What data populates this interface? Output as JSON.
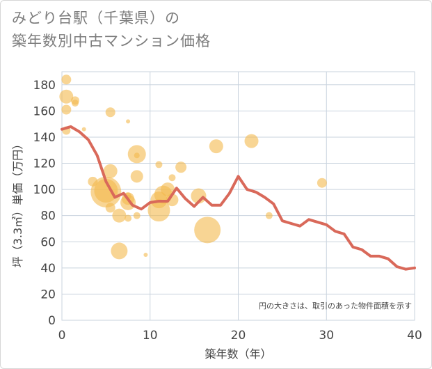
{
  "title_line1": "みどり台駅（千葉県）の",
  "title_line2": "築年数別中古マンション価格",
  "chart_data": {
    "type": "scatter",
    "xlabel": "築年数（年）",
    "ylabel": "坪（3.3㎡）単価（万円）",
    "xlim": [
      0,
      40
    ],
    "ylim": [
      0,
      190
    ],
    "xticks": [
      "0",
      "10",
      "20",
      "30",
      "40"
    ],
    "yticks": [
      "0",
      "20",
      "40",
      "60",
      "80",
      "100",
      "120",
      "140",
      "160",
      "180"
    ],
    "grid": true,
    "note": "円の大きさは、取引のあった物件面積を示す",
    "colors": {
      "bubble": "#f3b94d",
      "line": "#d9695a",
      "grid": "#c9d3de"
    },
    "bubbles": [
      {
        "x": 0.5,
        "y": 184,
        "s": 7
      },
      {
        "x": 0.5,
        "y": 171,
        "s": 10
      },
      {
        "x": 1.5,
        "y": 168,
        "s": 6
      },
      {
        "x": 1.5,
        "y": 166,
        "s": 5
      },
      {
        "x": 0.5,
        "y": 161,
        "s": 7
      },
      {
        "x": 0.5,
        "y": 145,
        "s": 6
      },
      {
        "x": 2.5,
        "y": 146,
        "s": 3
      },
      {
        "x": 5.5,
        "y": 159,
        "s": 7
      },
      {
        "x": 7.5,
        "y": 152,
        "s": 3
      },
      {
        "x": 8.5,
        "y": 127,
        "s": 13
      },
      {
        "x": 8.5,
        "y": 126,
        "s": 4
      },
      {
        "x": 11,
        "y": 119,
        "s": 5
      },
      {
        "x": 5.5,
        "y": 114,
        "s": 10
      },
      {
        "x": 3.5,
        "y": 106,
        "s": 7
      },
      {
        "x": 8.5,
        "y": 110,
        "s": 9
      },
      {
        "x": 13.5,
        "y": 117,
        "s": 8
      },
      {
        "x": 5,
        "y": 99,
        "s": 17
      },
      {
        "x": 5,
        "y": 98,
        "s": 22
      },
      {
        "x": 7.5,
        "y": 93,
        "s": 9
      },
      {
        "x": 7.5,
        "y": 90,
        "s": 11
      },
      {
        "x": 7.5,
        "y": 95,
        "s": 5
      },
      {
        "x": 5.5,
        "y": 86,
        "s": 7
      },
      {
        "x": 6.5,
        "y": 80,
        "s": 10
      },
      {
        "x": 7.5,
        "y": 78,
        "s": 5
      },
      {
        "x": 8.5,
        "y": 80,
        "s": 5
      },
      {
        "x": 11,
        "y": 84,
        "s": 16
      },
      {
        "x": 11,
        "y": 92,
        "s": 12
      },
      {
        "x": 11.5,
        "y": 96,
        "s": 13
      },
      {
        "x": 12,
        "y": 100,
        "s": 10
      },
      {
        "x": 12.5,
        "y": 92,
        "s": 9
      },
      {
        "x": 12.5,
        "y": 109,
        "s": 5
      },
      {
        "x": 15.5,
        "y": 95,
        "s": 11
      },
      {
        "x": 6.5,
        "y": 53,
        "s": 12
      },
      {
        "x": 9.5,
        "y": 50,
        "s": 3
      },
      {
        "x": 16.5,
        "y": 69,
        "s": 19
      },
      {
        "x": 17.5,
        "y": 133,
        "s": 10
      },
      {
        "x": 21.5,
        "y": 137,
        "s": 10
      },
      {
        "x": 23.5,
        "y": 80,
        "s": 5
      },
      {
        "x": 29.5,
        "y": 105,
        "s": 7
      }
    ],
    "series": [
      {
        "x": [
          0,
          1,
          2,
          3,
          4,
          5,
          6,
          7,
          8,
          9,
          10,
          11,
          12,
          13,
          14,
          15,
          16,
          17,
          18,
          19,
          20,
          21,
          22,
          23,
          24,
          25,
          26,
          27,
          28,
          29,
          30,
          31,
          32,
          33,
          34,
          35,
          36,
          37,
          38,
          39,
          40
        ],
        "y": [
          146,
          148,
          144,
          138,
          126,
          106,
          94,
          97,
          88,
          85,
          90,
          91,
          91,
          101,
          93,
          87,
          94,
          88,
          88,
          97,
          110,
          100,
          98,
          94,
          89,
          76,
          74,
          72,
          77,
          75,
          73,
          68,
          66,
          56,
          54,
          49,
          49,
          47,
          41,
          39,
          40
        ]
      }
    ]
  }
}
